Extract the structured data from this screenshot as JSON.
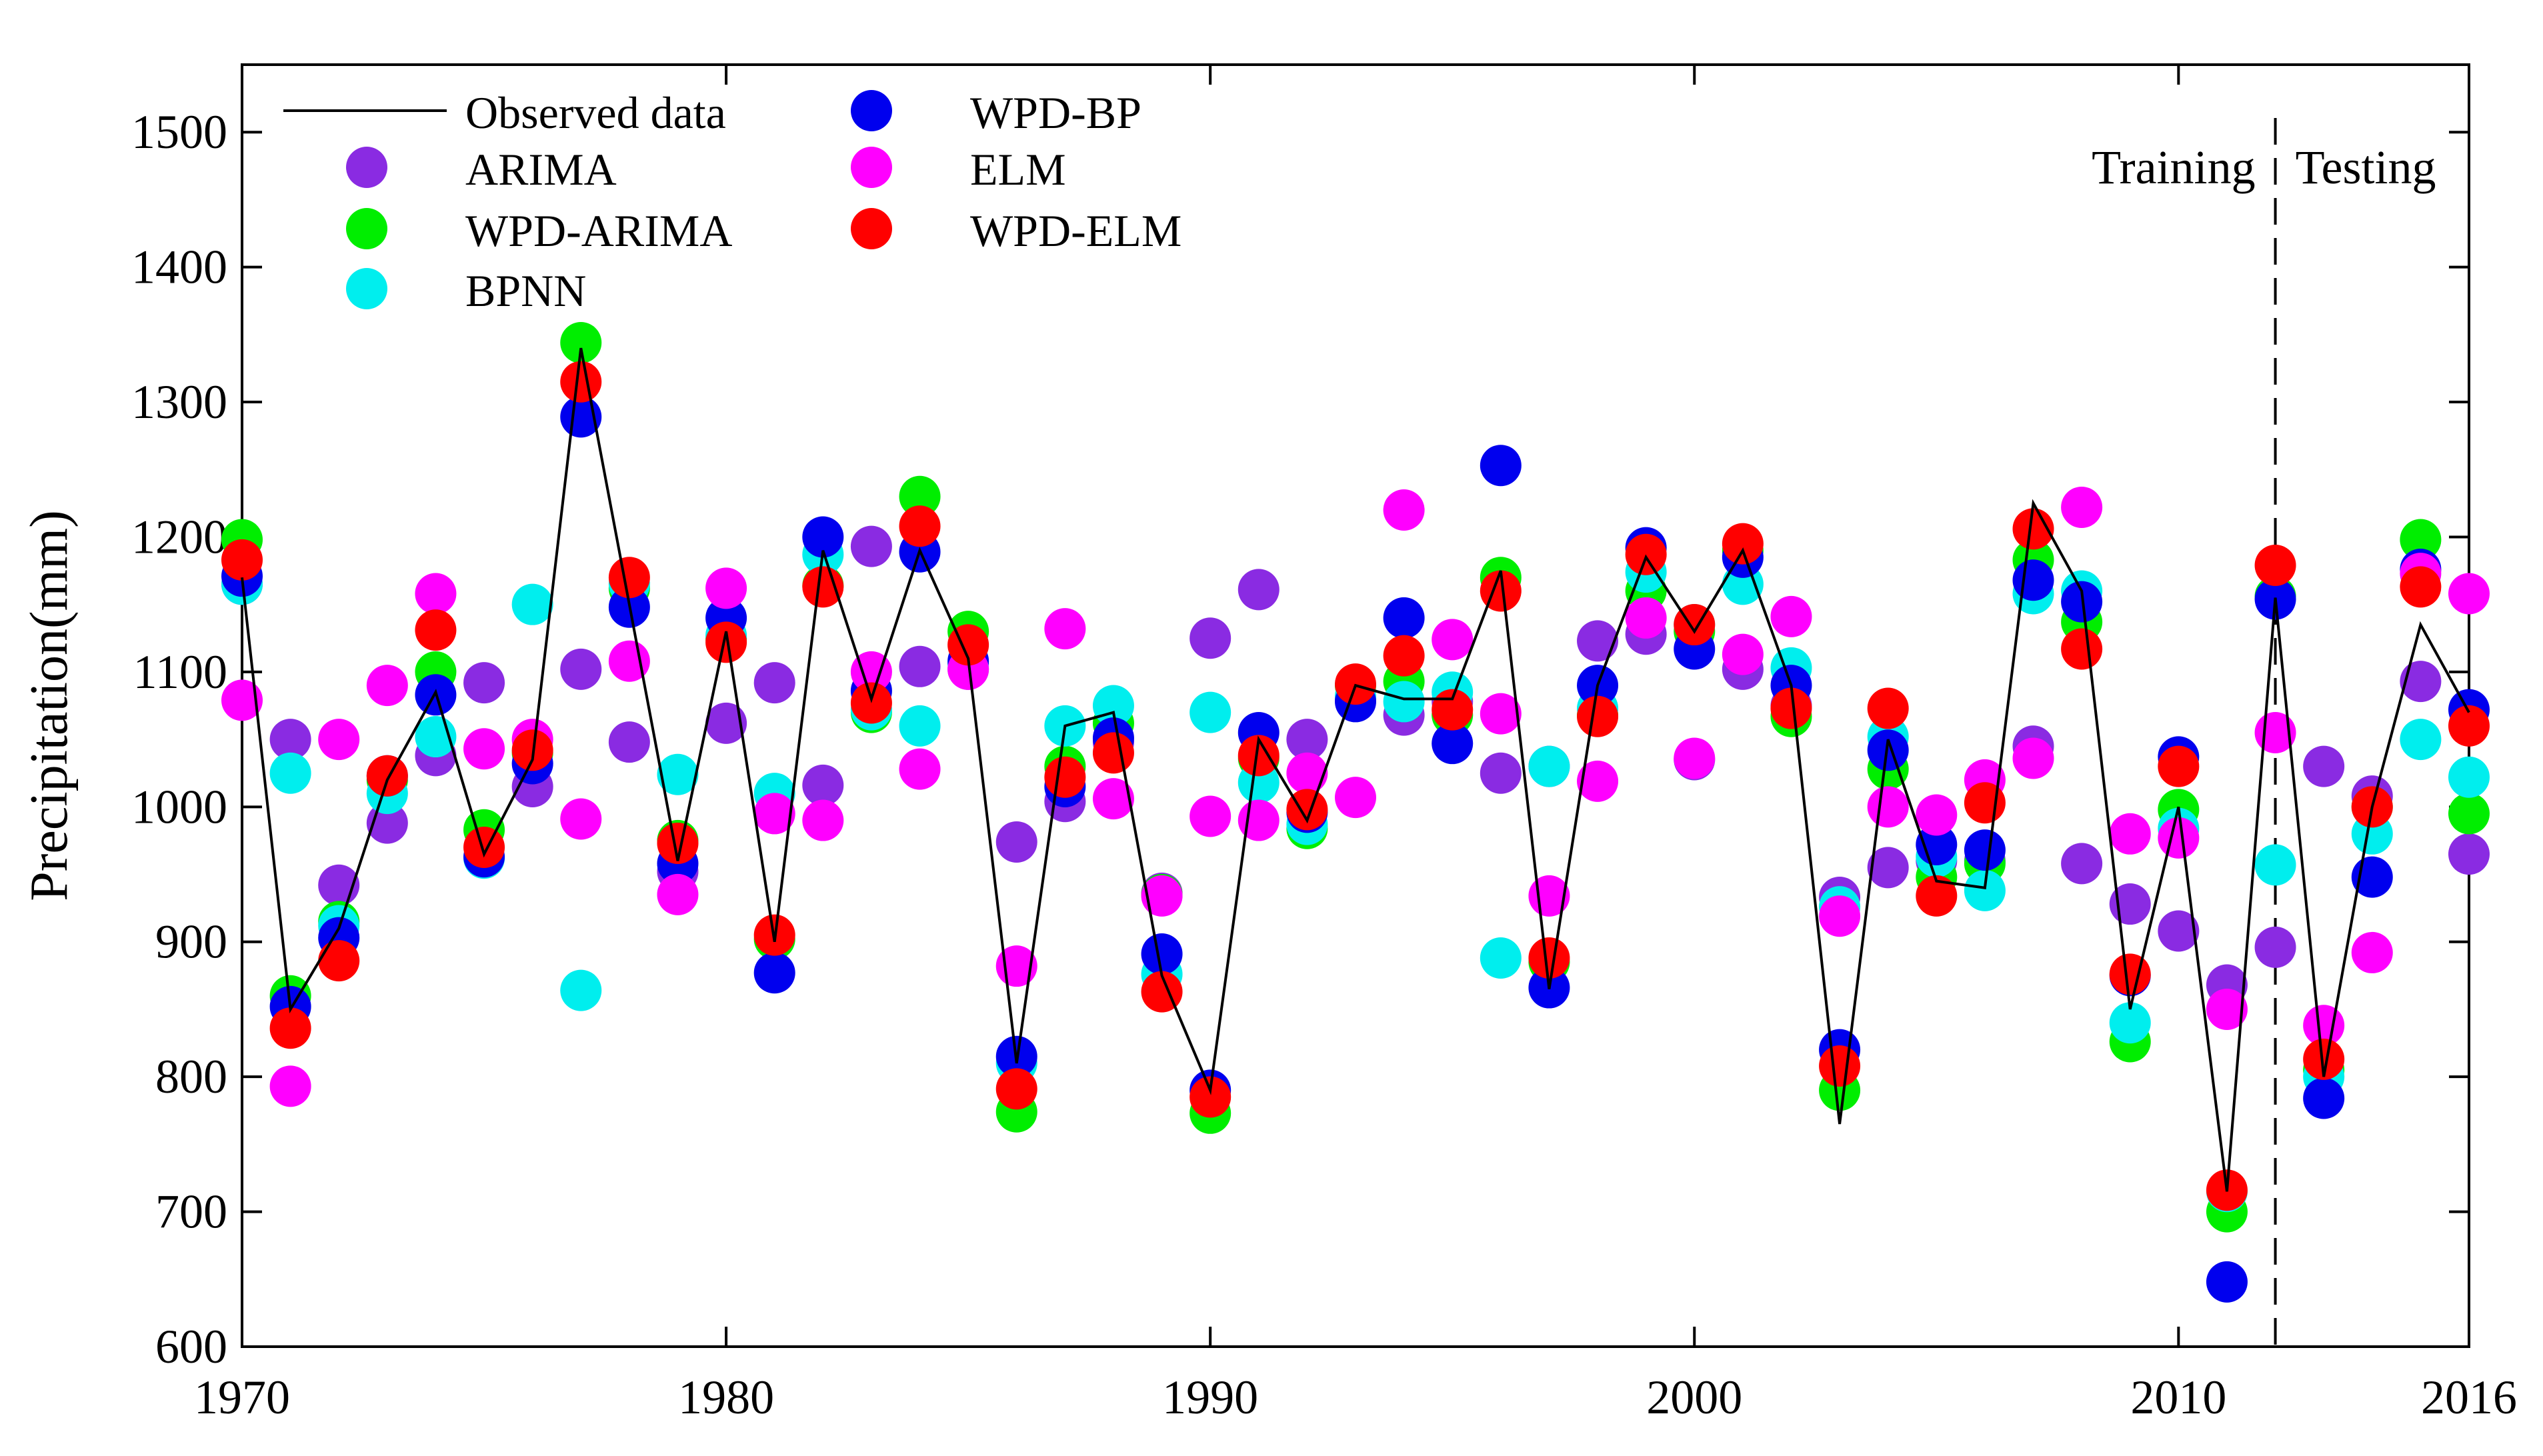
{
  "chart_data": {
    "type": "line",
    "title": "",
    "xlabel": "",
    "ylabel": "Precipitation(mm)",
    "xlim": [
      1970,
      2016
    ],
    "ylim": [
      600,
      1550
    ],
    "x_ticks": [
      1970,
      1980,
      1990,
      2000,
      2010,
      2016
    ],
    "y_ticks": [
      600,
      700,
      800,
      900,
      1000,
      1100,
      1200,
      1300,
      1400,
      1500
    ],
    "grid": false,
    "legend_position": "top-left",
    "split": {
      "year": 2012,
      "left_label": "Training",
      "right_label": "Testing"
    },
    "x": [
      1970,
      1971,
      1972,
      1973,
      1974,
      1975,
      1976,
      1977,
      1978,
      1979,
      1980,
      1981,
      1982,
      1983,
      1984,
      1985,
      1986,
      1987,
      1988,
      1989,
      1990,
      1991,
      1992,
      1993,
      1994,
      1995,
      1996,
      1997,
      1998,
      1999,
      2000,
      2001,
      2002,
      2003,
      2004,
      2005,
      2006,
      2007,
      2008,
      2009,
      2010,
      2011,
      2012,
      2013,
      2014,
      2015,
      2016
    ],
    "series": [
      {
        "name": "Observed data",
        "type": "line",
        "color": "#000000",
        "values": [
          1170,
          850,
          910,
          1020,
          1085,
          965,
          1035,
          1340,
          1150,
          960,
          1130,
          900,
          1190,
          1080,
          1190,
          1110,
          810,
          1060,
          1070,
          875,
          790,
          1050,
          990,
          1090,
          1080,
          1080,
          1175,
          865,
          1090,
          1185,
          1130,
          1190,
          1090,
          765,
          1050,
          945,
          940,
          1225,
          1160,
          850,
          1000,
          715,
          1155,
          800,
          1000,
          1135,
          1070
        ]
      },
      {
        "name": "ARIMA",
        "type": "scatter",
        "color": "#8a2be2",
        "values": [
          1165,
          1050,
          942,
          988,
          1038,
          1092,
          1015,
          1102,
          1048,
          952,
          1062,
          1092,
          1016,
          1193,
          1104,
          1102,
          974,
          1004,
          1048,
          936,
          1125,
          1161,
          1050,
          1080,
          1068,
          1078,
          1025,
          1030,
          1123,
          1128,
          1035,
          1102,
          1075,
          933,
          955,
          960,
          960,
          1045,
          958,
          928,
          908,
          868,
          896,
          1030,
          1008,
          1093,
          965
        ]
      },
      {
        "name": "WPD-ARIMA",
        "type": "scatter",
        "color": "#00ee00",
        "values": [
          1198,
          860,
          915,
          1020,
          1100,
          983,
          1040,
          1344,
          1162,
          975,
          1125,
          902,
          1164,
          1070,
          1230,
          1130,
          774,
          1030,
          1062,
          935,
          773,
          1036,
          984,
          1090,
          1093,
          1068,
          1170,
          885,
          1068,
          1160,
          1130,
          1190,
          1067,
          790,
          1028,
          948,
          958,
          1183,
          1137,
          826,
          998,
          700,
          1156,
          805,
          1000,
          1198,
          995
        ]
      },
      {
        "name": "BPNN",
        "type": "scatter",
        "color": "#00eeee",
        "values": [
          1165,
          1025,
          912,
          1010,
          1052,
          962,
          1150,
          864,
          1165,
          1024,
          1127,
          1010,
          1187,
          1072,
          1060,
          1106,
          810,
          1060,
          1075,
          876,
          1070,
          1018,
          987,
          1082,
          1078,
          1085,
          888,
          1030,
          1073,
          1174,
          1135,
          1165,
          1103,
          926,
          1052,
          963,
          938,
          1158,
          1160,
          840,
          984,
          715,
          957,
          800,
          980,
          1050,
          1022
        ]
      },
      {
        "name": "WPD-BP",
        "type": "scatter",
        "color": "#0000ee",
        "values": [
          1171,
          852,
          903,
          1023,
          1083,
          963,
          1032,
          1289,
          1148,
          958,
          1140,
          877,
          1200,
          1086,
          1189,
          1108,
          815,
          1015,
          1051,
          891,
          790,
          1055,
          996,
          1078,
          1140,
          1047,
          1253,
          866,
          1090,
          1192,
          1117,
          1185,
          1090,
          820,
          1042,
          972,
          968,
          1168,
          1152,
          875,
          1037,
          648,
          1154,
          784,
          948,
          1176,
          1072
        ]
      },
      {
        "name": "ELM",
        "type": "scatter",
        "color": "#ff00ff",
        "values": [
          1079,
          793,
          1050,
          1090,
          1158,
          1043,
          1050,
          991,
          1108,
          935,
          1162,
          995,
          990,
          1100,
          1028,
          1102,
          882,
          1132,
          1006,
          934,
          993,
          990,
          1025,
          1007,
          1220,
          1124,
          1069,
          934,
          1019,
          1140,
          1036,
          1113,
          1141,
          919,
          1000,
          994,
          1020,
          1036,
          1222,
          980,
          977,
          850,
          1055,
          838,
          892,
          1173,
          1158
        ]
      },
      {
        "name": "WPD-ELM",
        "type": "scatter",
        "color": "#ff0000",
        "values": [
          1183,
          836,
          886,
          1023,
          1131,
          970,
          1042,
          1315,
          1170,
          973,
          1122,
          905,
          1163,
          1077,
          1208,
          1120,
          791,
          1022,
          1040,
          863,
          785,
          1038,
          998,
          1091,
          1112,
          1072,
          1160,
          888,
          1067,
          1187,
          1135,
          1195,
          1073,
          808,
          1073,
          934,
          1003,
          1206,
          1117,
          876,
          1030,
          716,
          1179,
          813,
          1000,
          1163,
          1060
        ]
      }
    ]
  }
}
